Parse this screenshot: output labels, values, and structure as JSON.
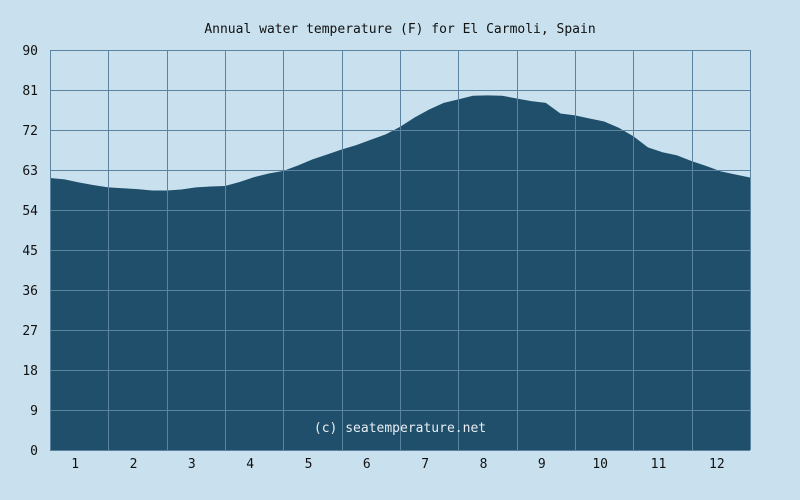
{
  "chart_data": {
    "type": "area",
    "title": "Annual water temperature (F) for El Carmoli, Spain",
    "credit": "(c) seatemperature.net",
    "xlabel": "",
    "ylabel": "",
    "x_tick_labels": [
      "1",
      "2",
      "3",
      "4",
      "5",
      "6",
      "7",
      "8",
      "9",
      "10",
      "11",
      "12"
    ],
    "y_tick_labels": [
      "0",
      "9",
      "18",
      "27",
      "36",
      "45",
      "54",
      "63",
      "72",
      "81",
      "90"
    ],
    "ylim": [
      0,
      90
    ],
    "xlim": [
      0.5,
      12.5
    ],
    "grid": true,
    "fill_color": "#1f4f6b",
    "background_color": "#c9e1ee",
    "x": [
      0.5,
      0.75,
      1.0,
      1.25,
      1.5,
      1.75,
      2.0,
      2.25,
      2.5,
      2.75,
      3.0,
      3.25,
      3.5,
      3.75,
      4.0,
      4.25,
      4.5,
      4.75,
      5.0,
      5.25,
      5.5,
      5.75,
      6.0,
      6.25,
      6.5,
      6.75,
      7.0,
      7.25,
      7.5,
      7.75,
      8.0,
      8.25,
      8.5,
      8.75,
      9.0,
      9.25,
      9.5,
      9.75,
      10.0,
      10.25,
      10.5,
      10.75,
      11.0,
      11.25,
      11.5,
      11.75,
      12.0,
      12.25,
      12.5
    ],
    "values": [
      61.2,
      60.9,
      60.2,
      59.6,
      59.1,
      58.9,
      58.7,
      58.4,
      58.4,
      58.6,
      59.1,
      59.3,
      59.4,
      60.3,
      61.4,
      62.2,
      62.8,
      64.0,
      65.4,
      66.5,
      67.6,
      68.6,
      69.8,
      71.0,
      72.7,
      74.8,
      76.6,
      78.1,
      78.9,
      79.7,
      79.8,
      79.7,
      79.1,
      78.5,
      78.1,
      75.7,
      75.3,
      74.6,
      73.9,
      72.5,
      70.6,
      68.1,
      67.0,
      66.3,
      65.0,
      63.9,
      62.7,
      62.0,
      61.3
    ]
  }
}
